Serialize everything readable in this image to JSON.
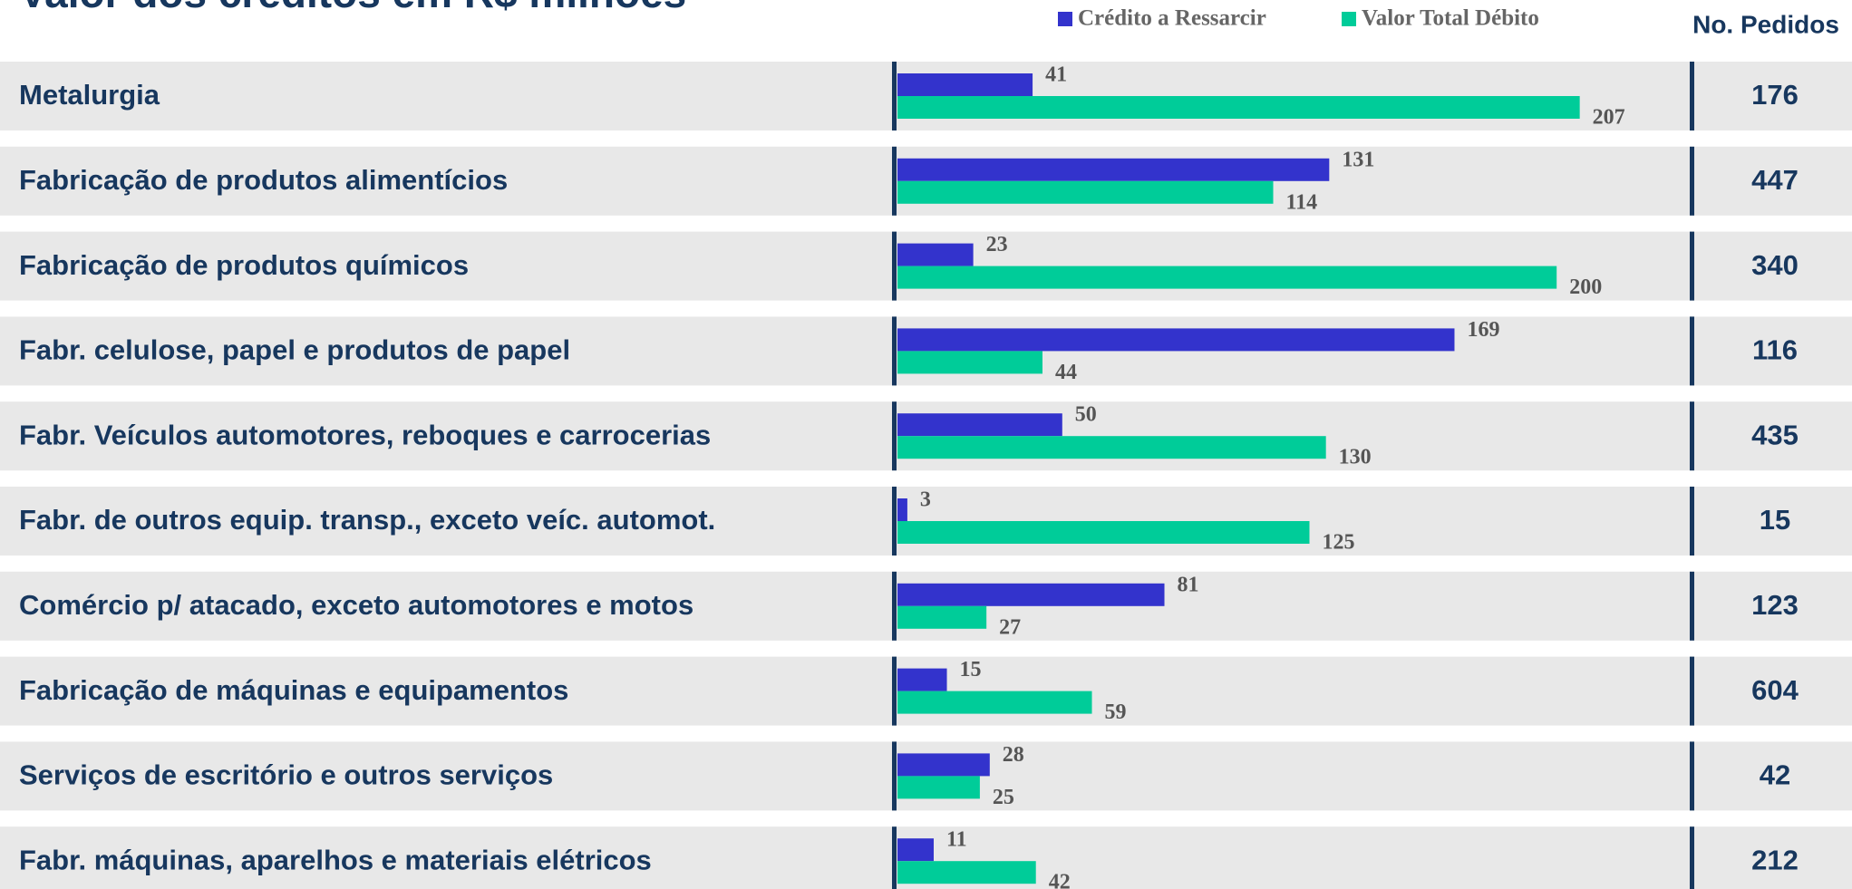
{
  "chart_data": {
    "type": "bar",
    "orientation": "horizontal",
    "title": "Valor dos créditos em R$ milhões",
    "categories": [
      "Metalurgia",
      "Fabricação de produtos alimentícios",
      "Fabricação de produtos químicos",
      "Fabr. celulose, papel e produtos de papel",
      "Fabr. Veículos automotores, reboques e carrocerias",
      "Fabr. de outros equip. transp., exceto veíc. automot.",
      "Comércio p/ atacado, exceto automotores e motos",
      "Fabricação de máquinas e equipamentos",
      "Serviços de escritório e outros serviços",
      "Fabr. máquinas, aparelhos e materiais elétricos"
    ],
    "series": [
      {
        "name": "Crédito a Ressarcir",
        "color": "#3333cc",
        "values": [
          41,
          131,
          23,
          169,
          50,
          3,
          81,
          15,
          28,
          11
        ]
      },
      {
        "name": "Valor Total Débito",
        "color": "#00cc99",
        "values": [
          207,
          114,
          200,
          44,
          130,
          125,
          27,
          59,
          25,
          42
        ]
      }
    ],
    "orders": {
      "title": "No. Pedidos",
      "values": [
        176,
        447,
        340,
        116,
        435,
        15,
        123,
        604,
        42,
        212
      ]
    }
  }
}
